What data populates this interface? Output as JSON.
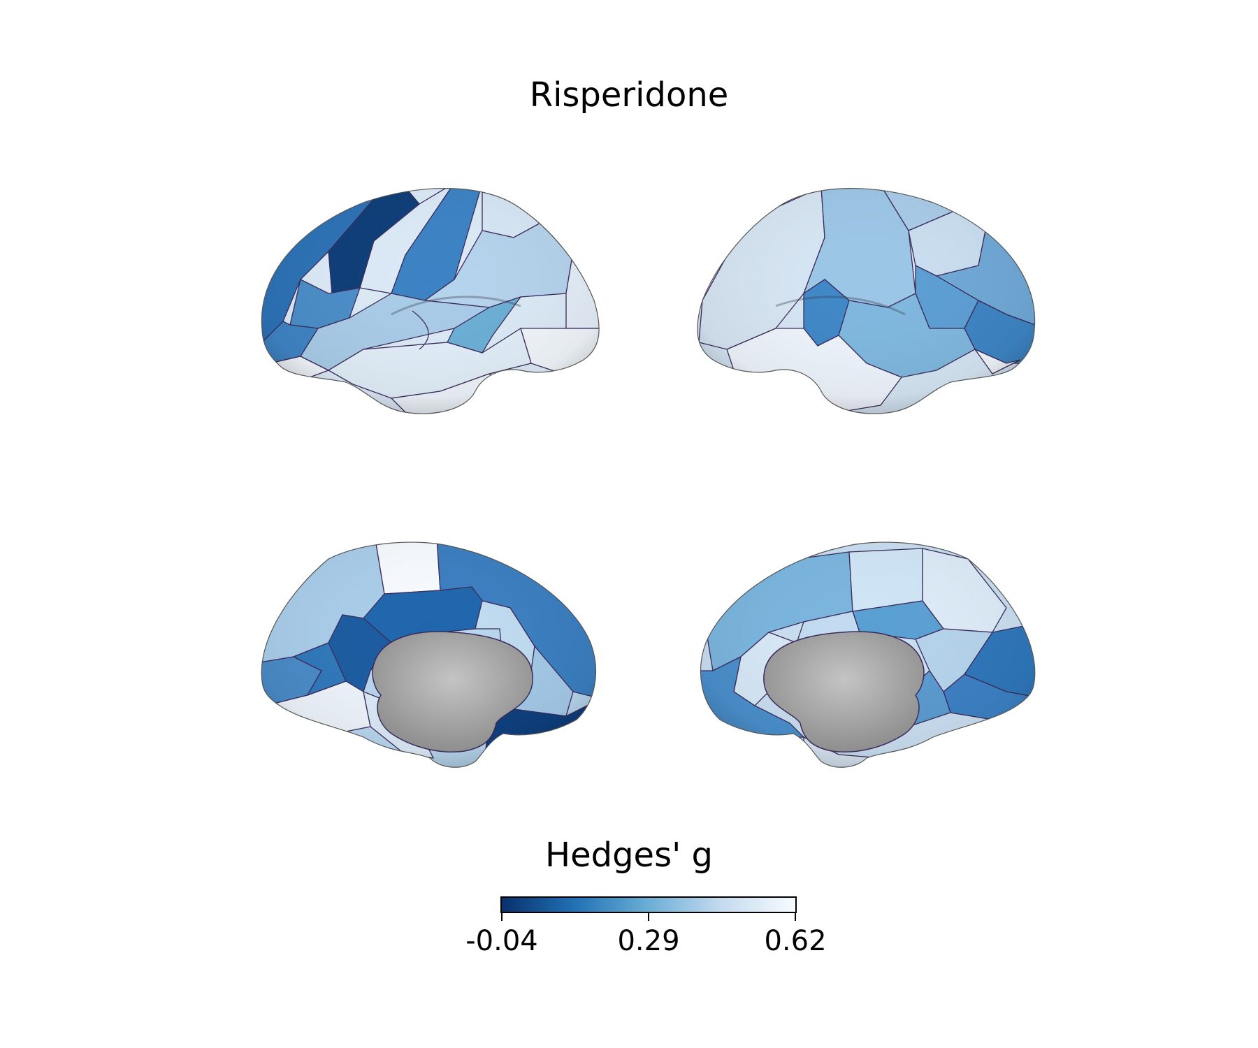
{
  "title": "Risperidone",
  "colorbar": {
    "label": "Hedges' g",
    "min": -0.04,
    "max": 0.62,
    "ticks": [
      "-0.04",
      "0.29",
      "0.62"
    ],
    "colors": [
      "#08306b",
      "#2171b5",
      "#6baed6",
      "#c6dbef",
      "#f7fbff"
    ]
  },
  "views": [
    {
      "name": "left-lateral"
    },
    {
      "name": "right-lateral"
    },
    {
      "name": "left-medial"
    },
    {
      "name": "right-medial"
    }
  ],
  "colors": {
    "outline": "#3a2a5a",
    "medial_wall": "#a8a8a8"
  }
}
